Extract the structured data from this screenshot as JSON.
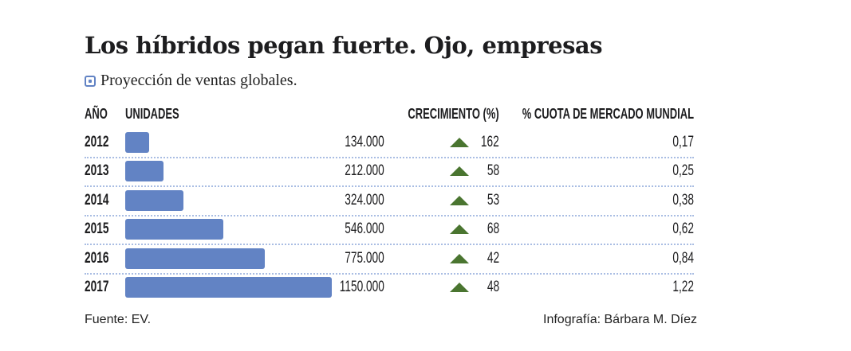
{
  "title": "Los híbridos pegan fuerte. Ojo, empresas",
  "subtitle": "Proyección de ventas globales.",
  "colors": {
    "bar": "#6283c4",
    "up_arrow": "#4a7530",
    "separator": "#a9bde3"
  },
  "chart_data": {
    "type": "table",
    "columns": [
      "AÑO",
      "UNIDADES",
      "CRECIMIENTO (%)",
      "% CUOTA DE MERCADO MUNDIAL"
    ],
    "rows": [
      {
        "year": "2012",
        "units": 134000,
        "units_label": "134.000",
        "growth": "162",
        "trend": "up",
        "share": "0,17"
      },
      {
        "year": "2013",
        "units": 212000,
        "units_label": "212.000",
        "growth": "58",
        "trend": "up",
        "share": "0,25"
      },
      {
        "year": "2014",
        "units": 324000,
        "units_label": "324.000",
        "growth": "53",
        "trend": "up",
        "share": "0,38"
      },
      {
        "year": "2015",
        "units": 546000,
        "units_label": "546.000",
        "growth": "68",
        "trend": "up",
        "share": "0,62"
      },
      {
        "year": "2016",
        "units": 775000,
        "units_label": "775.000",
        "growth": "42",
        "trend": "up",
        "share": "0,84"
      },
      {
        "year": "2017",
        "units": 1150000,
        "units_label": "1150.000",
        "growth": "48",
        "trend": "up",
        "share": "1,22"
      }
    ],
    "units_range": [
      0,
      1150000
    ]
  },
  "footer": {
    "source": "Fuente: EV.",
    "credit": "Infografía: Bárbara M. Díez"
  }
}
